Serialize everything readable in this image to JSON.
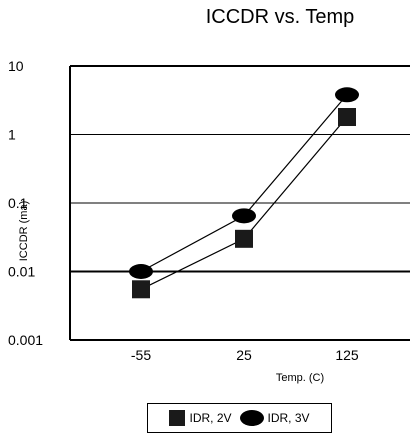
{
  "chart_data": {
    "type": "line",
    "title": "ICCDR vs. Temp",
    "xlabel": "Temp. (C)",
    "ylabel": "ICCDR (ma)",
    "categories": [
      "-55",
      "25",
      "125"
    ],
    "y_scale": "log",
    "ylim": [
      0.001,
      10
    ],
    "y_ticks": [
      "10",
      "1",
      "0.1",
      "0.01",
      "0.001"
    ],
    "grid": "horizontal",
    "legend_position": "bottom",
    "series": [
      {
        "name": "IDR, 2V",
        "marker": "square",
        "values": [
          0.0055,
          0.03,
          1.8
        ]
      },
      {
        "name": "IDR, 3V",
        "marker": "ellipse",
        "values": [
          0.01,
          0.065,
          3.8
        ]
      }
    ]
  },
  "colors": {
    "marker": "#1a1a1a",
    "line": "#000000",
    "axis": "#000000"
  }
}
